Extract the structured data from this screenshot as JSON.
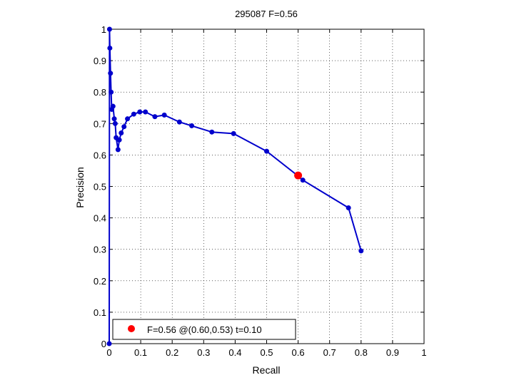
{
  "chart_data": {
    "type": "line",
    "title": "295087 F=0.56",
    "xlabel": "Recall",
    "ylabel": "Precision",
    "xlim": [
      0,
      1
    ],
    "ylim": [
      0,
      1
    ],
    "grid": true,
    "xticks": [
      "0",
      "0.1",
      "0.2",
      "0.3",
      "0.4",
      "0.5",
      "0.6",
      "0.7",
      "0.8",
      "0.9",
      "1"
    ],
    "yticks": [
      "0",
      "0.1",
      "0.2",
      "0.3",
      "0.4",
      "0.5",
      "0.6",
      "0.7",
      "0.8",
      "0.9",
      "1"
    ],
    "line_color": "#0000cc",
    "series": [
      {
        "x": [
          0.0,
          0.001,
          0.002,
          0.004,
          0.006,
          0.008,
          0.012,
          0.016,
          0.019,
          0.022,
          0.028,
          0.032,
          0.038,
          0.047,
          0.058,
          0.078,
          0.097,
          0.115,
          0.145,
          0.175,
          0.223,
          0.262,
          0.326,
          0.395,
          0.5,
          0.598,
          0.615,
          0.76,
          0.8
        ],
        "y": [
          0.0,
          1.0,
          0.94,
          0.86,
          0.8,
          0.745,
          0.755,
          0.715,
          0.7,
          0.655,
          0.617,
          0.648,
          0.67,
          0.69,
          0.715,
          0.73,
          0.737,
          0.737,
          0.722,
          0.727,
          0.705,
          0.693,
          0.673,
          0.668,
          0.612,
          0.535,
          0.52,
          0.432,
          0.295
        ]
      }
    ],
    "highlight": {
      "x": 0.6,
      "y": 0.535,
      "color": "#ff0000"
    },
    "legend": {
      "position": "bottom-left",
      "text": "F=0.56 @(0.60,0.53) t=0.10"
    }
  }
}
